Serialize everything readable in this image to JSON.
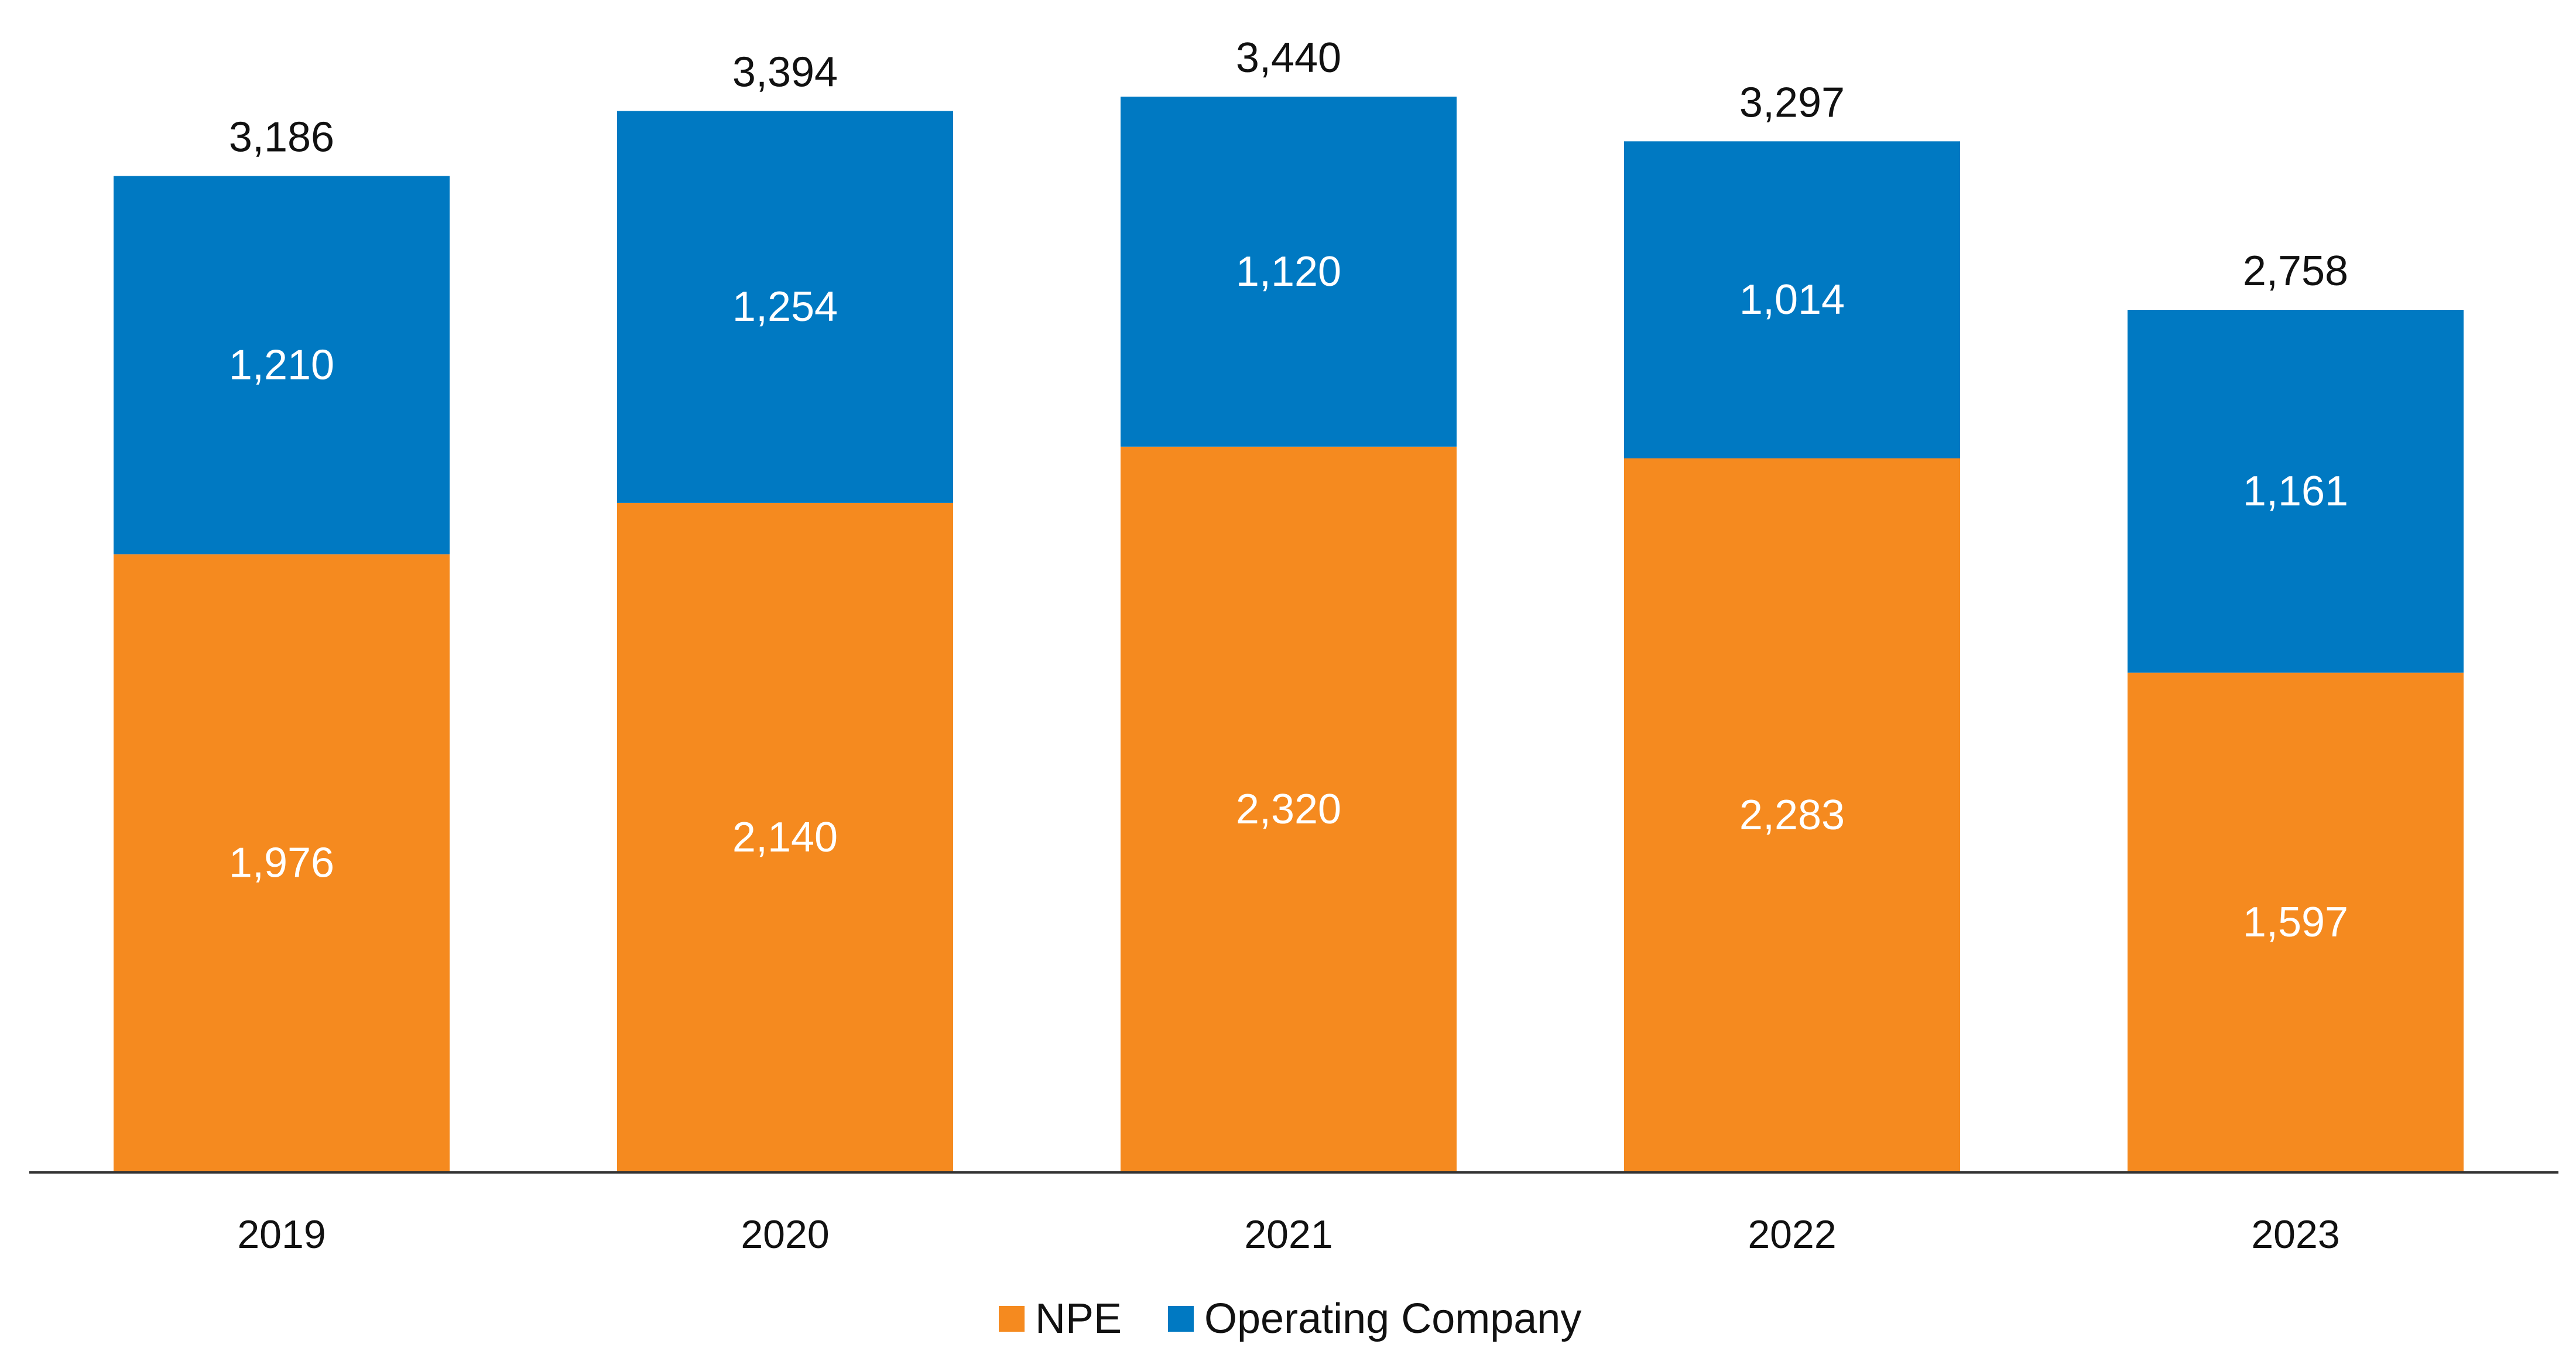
{
  "chart_data": {
    "type": "bar",
    "stacked": true,
    "categories": [
      "2019",
      "2020",
      "2021",
      "2022",
      "2023"
    ],
    "series": [
      {
        "name": "NPE",
        "color": "#F58A1F",
        "values": [
          1976,
          2140,
          2320,
          2283,
          1597
        ]
      },
      {
        "name": "Operating Company",
        "color": "#0079C2",
        "values": [
          1210,
          1254,
          1120,
          1014,
          1161
        ]
      }
    ],
    "totals": [
      3186,
      3394,
      3440,
      3297,
      2758
    ],
    "segment_labels": [
      [
        "1,976",
        "2,140",
        "2,320",
        "2,283",
        "1,597"
      ],
      [
        "1,210",
        "1,254",
        "1,120",
        "1,014",
        "1,161"
      ]
    ],
    "total_labels": [
      "3,186",
      "3,394",
      "3,440",
      "3,297",
      "2,758"
    ],
    "title": "",
    "xlabel": "",
    "ylabel": "",
    "ylim": [
      0,
      3440
    ],
    "grid": false,
    "legend": {
      "position": "bottom-center",
      "entries": [
        "NPE",
        "Operating Company"
      ]
    }
  }
}
